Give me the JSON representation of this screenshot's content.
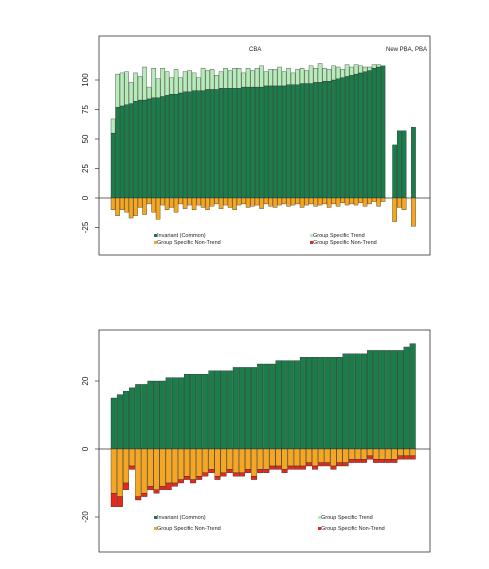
{
  "colors": {
    "invariant": "#1a7d4a",
    "trend": "#b7ecba",
    "nontrend_orange": "#f5a623",
    "nontrend_red": "#e8281d"
  },
  "chart_data": [
    {
      "type": "bar",
      "stacked": true,
      "annotations": [
        "CBA",
        "New PBA, PBA"
      ],
      "yticks": [
        "100",
        "75",
        "50",
        "25",
        "0",
        "-25"
      ],
      "ylim": [
        -45,
        140
      ],
      "grid": false,
      "legend_position": "bottom",
      "legend": [
        {
          "label": "Invariant (Common)",
          "color_key": "invariant"
        },
        {
          "label": "Group Specific Trend",
          "color_key": "trend"
        },
        {
          "label": "Group Specific Non-Trend",
          "color_key": "nontrend_orange"
        },
        {
          "label": "Group Specific Non-Trend",
          "color_key": "nontrend_red"
        }
      ],
      "groups": [
        {
          "name": "CBA",
          "series": [
            {
              "name": "Invariant (Common)",
              "values": [
                55,
                77,
                78,
                79,
                80,
                82,
                83,
                83,
                84,
                85,
                85,
                86,
                87,
                88,
                88,
                89,
                90,
                90,
                91,
                91,
                91,
                92,
                92,
                92,
                93,
                93,
                93,
                93,
                93,
                94,
                94,
                94,
                94,
                94,
                95,
                95,
                95,
                95,
                95,
                96,
                96,
                96,
                97,
                97,
                97,
                98,
                98,
                99,
                99,
                100,
                101,
                102,
                103,
                104,
                105,
                106,
                107,
                108,
                110,
                111,
                112
              ]
            },
            {
              "name": "Group Specific Trend",
              "values": [
                12,
                28,
                28,
                28,
                18,
                24,
                20,
                28,
                10,
                25,
                16,
                24,
                20,
                14,
                21,
                13,
                17,
                18,
                15,
                11,
                19,
                16,
                17,
                12,
                14,
                17,
                15,
                17,
                17,
                12,
                16,
                14,
                16,
                18,
                12,
                14,
                14,
                16,
                12,
                14,
                10,
                13,
                13,
                11,
                15,
                12,
                16,
                11,
                10,
                12,
                10,
                7,
                10,
                7,
                8,
                6,
                4,
                3,
                3,
                2,
                0
              ]
            },
            {
              "name": "Group Specific Non-Trend",
              "values": [
                -10,
                -15,
                -10,
                -12,
                -17,
                -15,
                -8,
                -14,
                -5,
                -12,
                -18,
                -6,
                -10,
                -8,
                -12,
                -5,
                -9,
                -6,
                -10,
                -6,
                -8,
                -10,
                -7,
                -5,
                -9,
                -6,
                -8,
                -10,
                -6,
                -5,
                -8,
                -7,
                -6,
                -9,
                -5,
                -7,
                -8,
                -6,
                -5,
                -7,
                -6,
                -5,
                -8,
                -6,
                -5,
                -7,
                -6,
                -5,
                -8,
                -5,
                -7,
                -4,
                -6,
                -5,
                -6,
                -4,
                -7,
                -5,
                -3,
                -7,
                -3
              ]
            }
          ]
        },
        {
          "name": "New PBA, PBA",
          "series": [
            {
              "name": "Invariant (Common)",
              "values": [
                45,
                57,
                57,
                0,
                60
              ]
            },
            {
              "name": "Group Specific Trend",
              "values": [
                0,
                0,
                0,
                0,
                0
              ]
            },
            {
              "name": "Group Specific Non-Trend",
              "values": [
                -20,
                -8,
                -10,
                0,
                -24
              ]
            }
          ]
        }
      ]
    },
    {
      "type": "bar",
      "stacked": true,
      "yticks": [
        "20",
        "0",
        "-20"
      ],
      "ylim": [
        -27,
        38
      ],
      "grid": false,
      "legend_position": "bottom",
      "legend": [
        {
          "label": "Invariant (Common)",
          "color_key": "invariant"
        },
        {
          "label": "Group Specific Trend",
          "color_key": "trend"
        },
        {
          "label": "Group Specific Non-Trend",
          "color_key": "nontrend_orange"
        },
        {
          "label": "Group Specific Non-Trend",
          "color_key": "nontrend_red"
        }
      ],
      "series": [
        {
          "name": "Invariant (Common)",
          "values": [
            15,
            16,
            17,
            18,
            19,
            19,
            20,
            20,
            20,
            21,
            21,
            21,
            22,
            22,
            22,
            22,
            23,
            23,
            23,
            23,
            24,
            24,
            24,
            24,
            25,
            25,
            25,
            26,
            26,
            26,
            26,
            27,
            27,
            27,
            27,
            27,
            27,
            27,
            28,
            28,
            28,
            28,
            29,
            29,
            29,
            29,
            29,
            29,
            30,
            31
          ]
        },
        {
          "name": "Group Specific Non-Trend (orange)",
          "values": [
            -13,
            -14,
            -10,
            -5,
            -14,
            -13,
            -11,
            -12,
            -11,
            -10,
            -10,
            -9,
            -8,
            -9,
            -8,
            -7,
            -6,
            -8,
            -7,
            -6,
            -7,
            -7,
            -6,
            -8,
            -6,
            -6,
            -5,
            -5,
            -6,
            -5,
            -5,
            -5,
            -4,
            -5,
            -4,
            -4,
            -5,
            -4,
            -4,
            -3,
            -3,
            -3,
            -2,
            -3,
            -3,
            -3,
            -3,
            -2,
            -2,
            -2
          ]
        },
        {
          "name": "Group Specific Non-Trend (red)",
          "values": [
            -4,
            -3,
            -2,
            -1,
            -1,
            -1,
            -1,
            -1,
            -1,
            -2,
            -1,
            -1,
            -1,
            -1,
            -1,
            -1,
            -1,
            -1,
            -1,
            -1,
            -1,
            -1,
            -1,
            -1,
            -1,
            -1,
            -1,
            -1,
            -1,
            -1,
            -1,
            -1,
            -1,
            -1,
            -1,
            -1,
            -1,
            -1,
            -1,
            -1,
            -1,
            -1,
            -1,
            -1,
            -1,
            -1,
            -1,
            -1,
            -1,
            -1
          ]
        }
      ]
    }
  ]
}
